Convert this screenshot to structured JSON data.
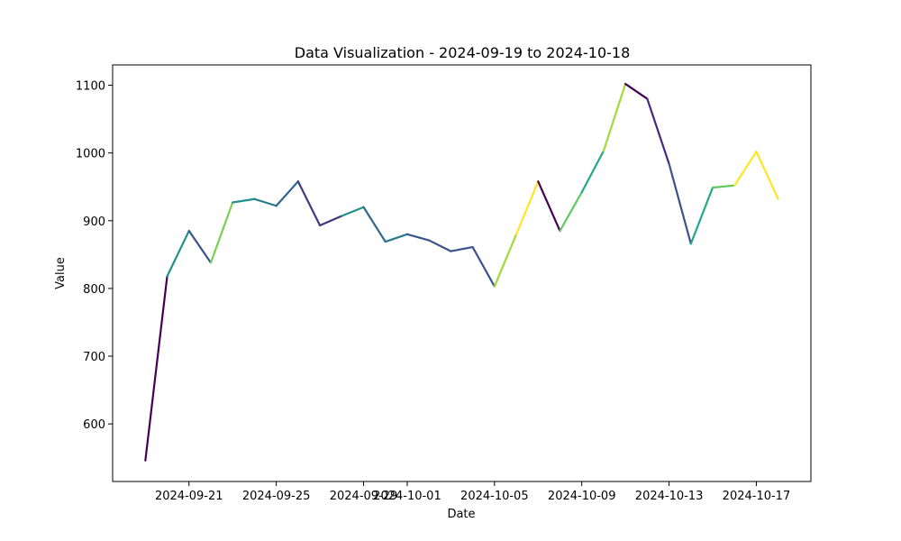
{
  "chart_data": {
    "type": "line",
    "title": "Data Visualization - 2024-09-19 to 2024-10-18",
    "xlabel": "Date",
    "ylabel": "Value",
    "x": [
      "2024-09-19",
      "2024-09-20",
      "2024-09-21",
      "2024-09-22",
      "2024-09-23",
      "2024-09-24",
      "2024-09-25",
      "2024-09-26",
      "2024-09-27",
      "2024-09-28",
      "2024-09-29",
      "2024-09-30",
      "2024-10-01",
      "2024-10-02",
      "2024-10-03",
      "2024-10-04",
      "2024-10-05",
      "2024-10-06",
      "2024-10-07",
      "2024-10-08",
      "2024-10-09",
      "2024-10-10",
      "2024-10-11",
      "2024-10-12",
      "2024-10-13",
      "2024-10-14",
      "2024-10-15",
      "2024-10-16",
      "2024-10-17",
      "2024-10-18"
    ],
    "values": [
      546,
      818,
      885,
      838,
      927,
      932,
      922,
      958,
      893,
      907,
      920,
      869,
      880,
      871,
      855,
      861,
      803,
      880,
      958,
      885,
      942,
      1003,
      1102,
      1080,
      984,
      866,
      949,
      952,
      1002,
      932
    ],
    "segment_colors": [
      "#440154",
      "#21918c",
      "#3b528b",
      "#7ad151",
      "#21918c",
      "#2a788e",
      "#31688e",
      "#443983",
      "#46337e",
      "#21918c",
      "#31688e",
      "#2a788e",
      "#3b528b",
      "#3b528b",
      "#3b528b",
      "#3b528b",
      "#a0da39",
      "#fde725",
      "#440154",
      "#5ec962",
      "#22a884",
      "#a0da39",
      "#440154",
      "#482878",
      "#3b528b",
      "#22a884",
      "#5ec962",
      "#fde725",
      "#fde725"
    ],
    "x_ticks": [
      "2024-09-21",
      "2024-09-25",
      "2024-09-29",
      "2024-10-01",
      "2024-10-05",
      "2024-10-09",
      "2024-10-13",
      "2024-10-17"
    ],
    "y_ticks": [
      600,
      700,
      800,
      900,
      1000,
      1100
    ],
    "ylim": [
      515,
      1130
    ],
    "xlim": [
      "2024-09-17T12:00",
      "2024-10-19T12:00"
    ],
    "grid": false,
    "legend": "none"
  }
}
